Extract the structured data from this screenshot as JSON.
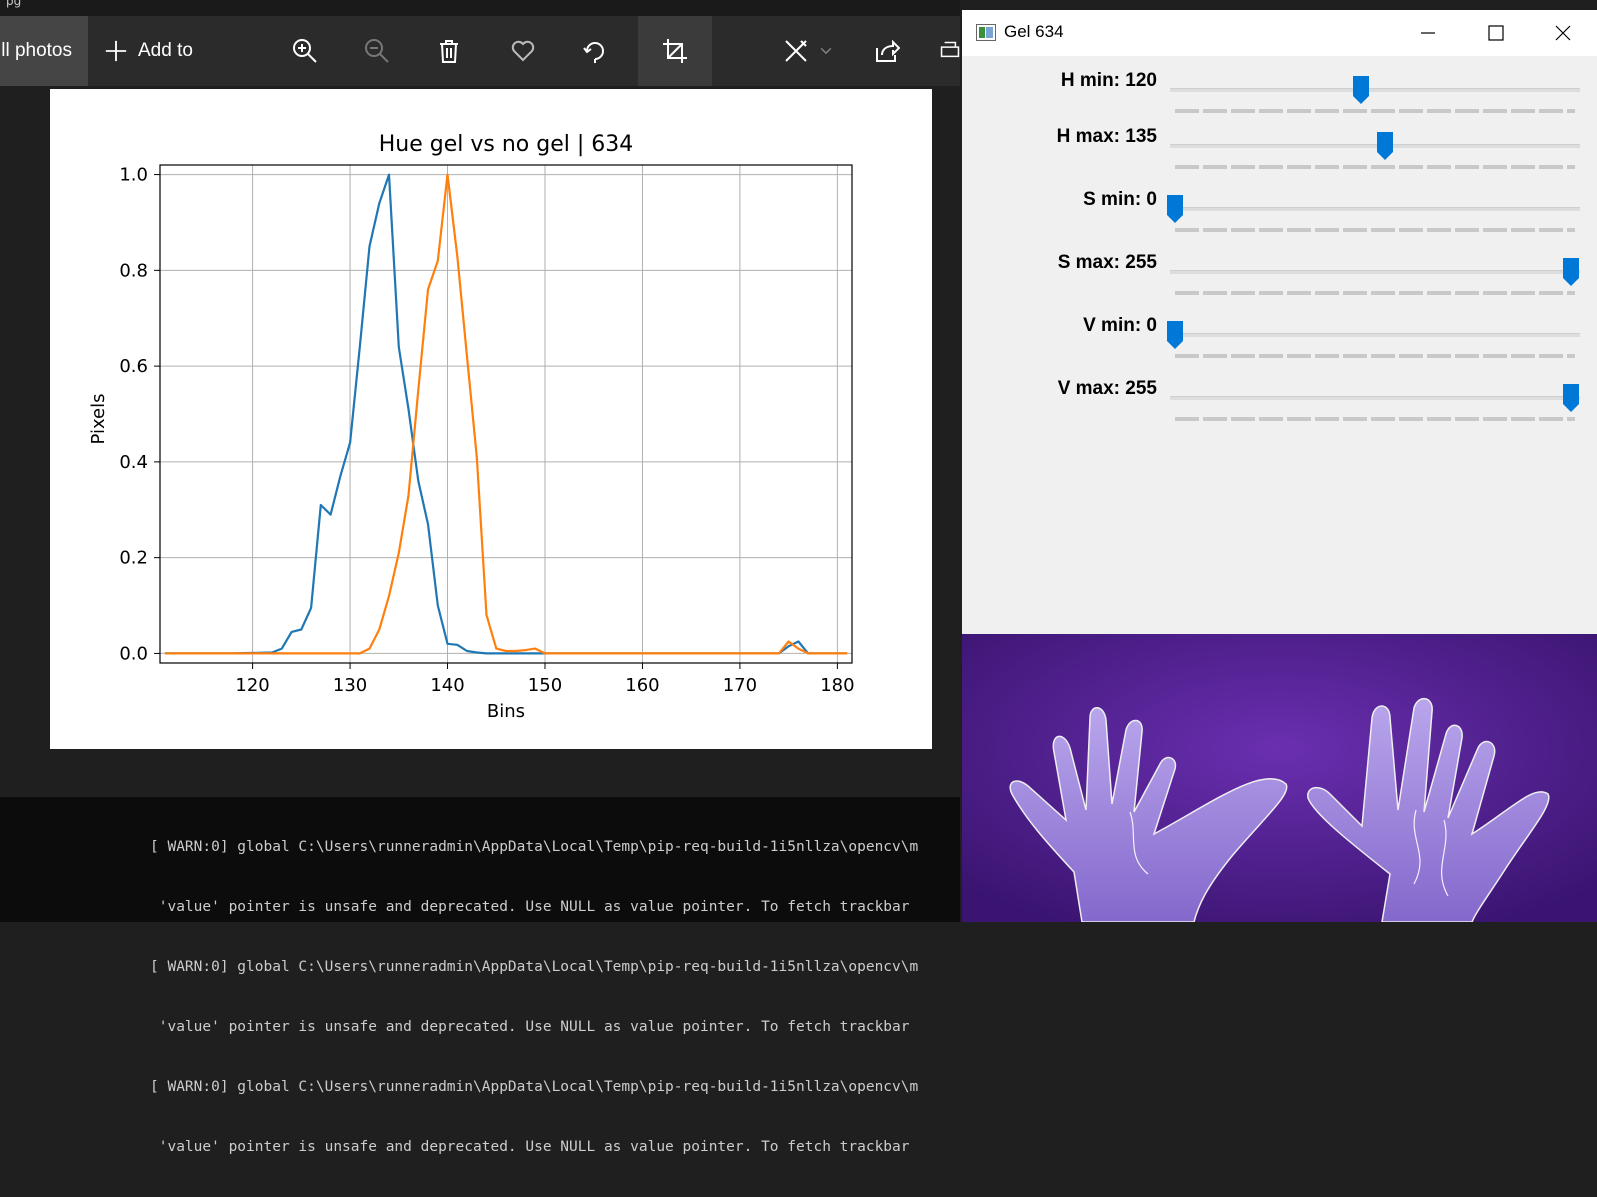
{
  "photos_app": {
    "title_fragment": "pg",
    "toolbar": {
      "all_photos_label": "ll photos",
      "add_to_label": "Add to"
    }
  },
  "console": {
    "lines": [
      "[ WARN:0] global C:\\Users\\runneradmin\\AppData\\Local\\Temp\\pip-req-build-1i5nllza\\opencv\\m",
      " 'value' pointer is unsafe and deprecated. Use NULL as value pointer. To fetch trackbar",
      "[ WARN:0] global C:\\Users\\runneradmin\\AppData\\Local\\Temp\\pip-req-build-1i5nllza\\opencv\\m",
      " 'value' pointer is unsafe and deprecated. Use NULL as value pointer. To fetch trackbar",
      "[ WARN:0] global C:\\Users\\runneradmin\\AppData\\Local\\Temp\\pip-req-build-1i5nllza\\opencv\\m",
      " 'value' pointer is unsafe and deprecated. Use NULL as value pointer. To fetch trackbar"
    ]
  },
  "gel_window": {
    "title": "Gel 634",
    "trackbars": [
      {
        "label": "H min: 120",
        "value": 120,
        "max": 255
      },
      {
        "label": "H max: 135",
        "value": 135,
        "max": 255
      },
      {
        "label": "S min: 0",
        "value": 0,
        "max": 255
      },
      {
        "label": "S max: 255",
        "value": 255,
        "max": 255
      },
      {
        "label": "V min: 0",
        "value": 0,
        "max": 255
      },
      {
        "label": "V max: 255",
        "value": 255,
        "max": 255
      }
    ]
  },
  "colors": {
    "series_blue": "#1f77b4",
    "series_orange": "#ff7f0e",
    "thumb_blue": "#0078d7",
    "purple_background": "#4b1c84"
  },
  "chart_data": {
    "type": "line",
    "title": "Hue gel vs no gel | 634",
    "xlabel": "Bins",
    "ylabel": "Pixels",
    "xlim": [
      110.5,
      181.5
    ],
    "ylim": [
      -0.02,
      1.02
    ],
    "xticks": [
      "120",
      "130",
      "140",
      "150",
      "160",
      "170",
      "180"
    ],
    "yticks": [
      "0.0",
      "0.2",
      "0.4",
      "0.6",
      "0.8",
      "1.0"
    ],
    "grid": true,
    "series": [
      {
        "color": "#1f77b4",
        "x": [
          111,
          118,
          122,
          123,
          124,
          125,
          126,
          127,
          128,
          129,
          130,
          131,
          132,
          133,
          134,
          135,
          136,
          137,
          138,
          139,
          140,
          141,
          142,
          143,
          144,
          150,
          174,
          175,
          176,
          177,
          181
        ],
        "y": [
          0,
          0,
          0.002,
          0.01,
          0.045,
          0.05,
          0.095,
          0.31,
          0.29,
          0.37,
          0.44,
          0.64,
          0.85,
          0.94,
          1.0,
          0.64,
          0.51,
          0.36,
          0.27,
          0.1,
          0.02,
          0.018,
          0.005,
          0.002,
          0,
          0,
          0,
          0.015,
          0.025,
          0,
          0
        ]
      },
      {
        "color": "#ff7f0e",
        "x": [
          111,
          131,
          132,
          133,
          134,
          135,
          136,
          137,
          138,
          139,
          140,
          141,
          142,
          143,
          144,
          145,
          146,
          147,
          148,
          149,
          150,
          174,
          175,
          176,
          177,
          181
        ],
        "y": [
          0,
          0,
          0.01,
          0.05,
          0.12,
          0.21,
          0.33,
          0.55,
          0.76,
          0.82,
          1.0,
          0.83,
          0.62,
          0.41,
          0.08,
          0.01,
          0.005,
          0.005,
          0.007,
          0.01,
          0,
          0,
          0.025,
          0.01,
          0,
          0
        ]
      }
    ]
  }
}
